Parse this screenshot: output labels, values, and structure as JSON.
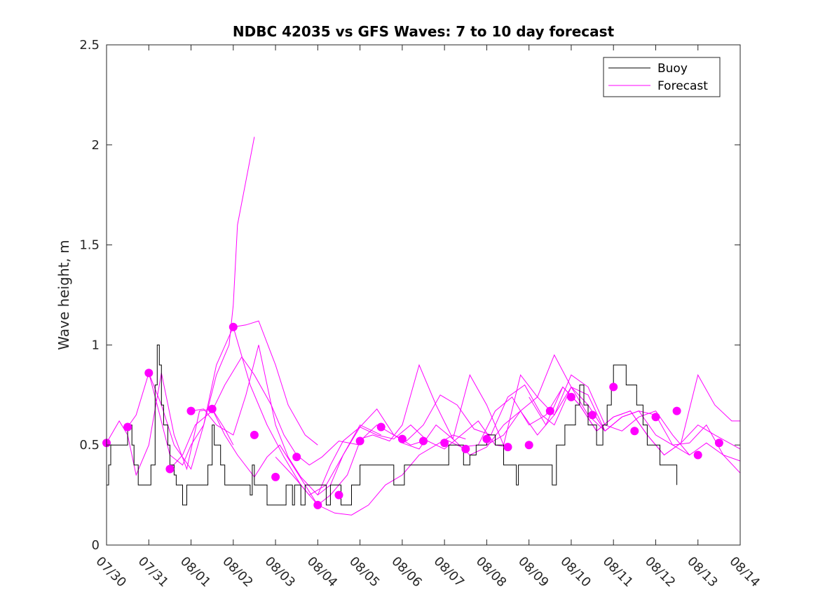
{
  "chart_data": {
    "type": "line",
    "title": "NDBC 42035 vs GFS Waves: 7 to 10 day forecast",
    "xlabel": "",
    "ylabel": "Wave height, m",
    "xlim": [
      "07/30",
      "08/14"
    ],
    "ylim": [
      0,
      2.5
    ],
    "x_tick_labels": [
      "07/30",
      "07/31",
      "08/01",
      "08/02",
      "08/03",
      "08/04",
      "08/05",
      "08/06",
      "08/07",
      "08/08",
      "08/09",
      "08/10",
      "08/11",
      "08/12",
      "08/13",
      "08/14"
    ],
    "y_tick_labels": [
      "0",
      "0.5",
      "1",
      "1.5",
      "2",
      "2.5"
    ],
    "y_ticks": [
      0,
      0.5,
      1,
      1.5,
      2,
      2.5
    ],
    "legend": {
      "position": "top-right",
      "entries": [
        "Buoy",
        "Forecast"
      ]
    },
    "colors": {
      "buoy": "#000000",
      "forecast": "#ff00ff"
    },
    "series": [
      {
        "name": "Buoy",
        "x": [
          0.0,
          0.05,
          0.1,
          0.15,
          0.25,
          0.5,
          0.6,
          0.65,
          0.75,
          1.0,
          1.05,
          1.15,
          1.2,
          1.25,
          1.3,
          1.35,
          1.4,
          1.45,
          1.5,
          1.55,
          1.6,
          1.65,
          1.75,
          1.8,
          1.9,
          1.95,
          2.0,
          2.05,
          2.25,
          2.3,
          2.4,
          2.5,
          2.55,
          2.6,
          2.65,
          2.7,
          2.8,
          2.9,
          3.2,
          3.3,
          3.4,
          3.45,
          3.5,
          3.6,
          3.8,
          3.95,
          4.1,
          4.25,
          4.3,
          4.4,
          4.45,
          4.55,
          4.6,
          4.7,
          5.15,
          5.2,
          5.3,
          5.45,
          5.55,
          5.65,
          5.8,
          6.0,
          6.1,
          6.2,
          6.4,
          6.8,
          7.05,
          7.3,
          7.5,
          7.75,
          8.0,
          8.1,
          8.3,
          8.45,
          8.6,
          8.75,
          9.0,
          9.2,
          9.4,
          9.6,
          9.65,
          9.7,
          9.75,
          9.85,
          10.0,
          10.2,
          10.35,
          10.5,
          10.55,
          10.65,
          10.75,
          10.85,
          11.0,
          11.1,
          11.2,
          11.3,
          11.4,
          11.5,
          11.6,
          11.75,
          11.85,
          11.95,
          12.0,
          12.3,
          12.55,
          12.7,
          12.8,
          12.9,
          13.0,
          13.1,
          13.15,
          13.3,
          13.5
        ],
        "values": [
          0.3,
          0.4,
          0.5,
          0.5,
          0.5,
          0.6,
          0.5,
          0.4,
          0.3,
          0.3,
          0.4,
          0.8,
          1.0,
          0.9,
          0.7,
          0.6,
          0.6,
          0.5,
          0.4,
          0.4,
          0.35,
          0.3,
          0.3,
          0.2,
          0.3,
          0.3,
          0.3,
          0.3,
          0.3,
          0.3,
          0.4,
          0.6,
          0.5,
          0.5,
          0.5,
          0.4,
          0.3,
          0.3,
          0.3,
          0.3,
          0.25,
          0.4,
          0.3,
          0.3,
          0.2,
          0.2,
          0.2,
          0.3,
          0.3,
          0.2,
          0.3,
          0.3,
          0.2,
          0.3,
          0.3,
          0.2,
          0.3,
          0.3,
          0.2,
          0.2,
          0.3,
          0.4,
          0.4,
          0.4,
          0.4,
          0.3,
          0.4,
          0.4,
          0.4,
          0.4,
          0.4,
          0.5,
          0.5,
          0.4,
          0.45,
          0.5,
          0.55,
          0.5,
          0.4,
          0.4,
          0.4,
          0.3,
          0.4,
          0.4,
          0.4,
          0.4,
          0.4,
          0.4,
          0.3,
          0.5,
          0.5,
          0.6,
          0.6,
          0.7,
          0.8,
          0.7,
          0.6,
          0.6,
          0.5,
          0.6,
          0.7,
          0.8,
          0.9,
          0.8,
          0.7,
          0.6,
          0.5,
          0.5,
          0.5,
          0.4,
          0.4,
          0.4,
          0.3
        ]
      },
      {
        "name": "Forecast",
        "runs": [
          {
            "x": [
              0.0,
              0.3,
              0.5,
              0.7,
              1.0,
              1.3,
              1.6,
              1.9,
              2.2,
              2.5,
              2.8,
              3.0
            ],
            "values": [
              0.51,
              0.62,
              0.55,
              0.35,
              0.5,
              0.86,
              0.55,
              0.38,
              0.67,
              0.68,
              0.58,
              0.5
            ]
          },
          {
            "x": [
              0.5,
              0.7,
              1.0,
              1.2,
              1.5,
              1.8,
              2.0,
              2.3,
              2.6,
              2.9,
              3.0,
              3.1,
              3.5
            ],
            "values": [
              0.59,
              0.65,
              0.86,
              0.7,
              0.45,
              0.4,
              0.5,
              0.6,
              0.85,
              1.0,
              1.2,
              1.6,
              2.04
            ]
          },
          {
            "x": [
              1.0,
              1.3,
              1.6,
              2.0,
              2.3,
              2.6,
              3.0,
              3.3,
              3.6,
              4.0,
              4.3,
              4.7,
              5.0
            ],
            "values": [
              0.86,
              0.7,
              0.5,
              0.38,
              0.6,
              0.9,
              1.09,
              1.1,
              1.12,
              0.9,
              0.7,
              0.55,
              0.5
            ]
          },
          {
            "x": [
              1.5,
              1.8,
              2.1,
              2.5,
              2.8,
              3.2,
              3.5,
              3.9,
              4.2,
              4.5,
              4.8,
              5.1,
              5.5,
              6.0
            ],
            "values": [
              0.38,
              0.45,
              0.6,
              0.67,
              0.8,
              0.94,
              0.85,
              0.7,
              0.55,
              0.45,
              0.4,
              0.44,
              0.52,
              0.5
            ]
          },
          {
            "x": [
              2.0,
              2.3,
              2.6,
              3.0,
              3.3,
              3.6,
              4.0,
              4.3,
              4.6,
              5.0,
              5.3,
              5.6,
              6.0,
              6.5
            ],
            "values": [
              0.67,
              0.68,
              0.6,
              0.55,
              0.75,
              1.0,
              0.6,
              0.44,
              0.34,
              0.25,
              0.3,
              0.45,
              0.6,
              0.55
            ]
          },
          {
            "x": [
              2.5,
              2.8,
              3.1,
              3.5,
              3.8,
              4.1,
              4.4,
              4.7,
              5.0,
              5.3,
              5.7,
              6.0,
              6.4,
              6.8,
              7.2,
              7.5
            ],
            "values": [
              0.68,
              0.55,
              0.45,
              0.34,
              0.44,
              0.5,
              0.4,
              0.3,
              0.2,
              0.25,
              0.35,
              0.52,
              0.6,
              0.55,
              0.5,
              0.52
            ]
          },
          {
            "x": [
              3.0,
              3.4,
              3.8,
              4.2,
              4.6,
              5.0,
              5.4,
              5.8,
              6.2,
              6.6,
              7.0,
              7.4,
              7.8,
              8.2,
              8.5
            ],
            "values": [
              1.09,
              0.8,
              0.6,
              0.44,
              0.3,
              0.2,
              0.16,
              0.15,
              0.2,
              0.3,
              0.35,
              0.45,
              0.5,
              0.55,
              0.53
            ]
          },
          {
            "x": [
              4.0,
              4.4,
              4.8,
              5.2,
              5.6,
              6.0,
              6.4,
              6.8,
              7.2,
              7.6,
              8.0,
              8.4,
              8.8,
              9.2,
              9.5
            ],
            "values": [
              0.44,
              0.35,
              0.25,
              0.3,
              0.45,
              0.59,
              0.55,
              0.53,
              0.6,
              0.52,
              0.48,
              0.55,
              0.62,
              0.5,
              0.49
            ]
          },
          {
            "x": [
              5.0,
              5.3,
              5.6,
              6.0,
              6.4,
              6.8,
              7.1,
              7.5,
              7.9,
              8.3,
              8.7,
              9.1,
              9.5,
              9.9,
              10.3,
              10.6,
              11.0
            ],
            "values": [
              0.25,
              0.4,
              0.52,
              0.59,
              0.68,
              0.55,
              0.52,
              0.6,
              0.75,
              0.7,
              0.58,
              0.55,
              0.74,
              0.8,
              0.65,
              0.6,
              0.79
            ]
          },
          {
            "x": [
              6.0,
              6.3,
              6.7,
              7.0,
              7.4,
              7.8,
              8.2,
              8.6,
              9.0,
              9.4,
              9.8,
              10.2,
              10.6,
              11.0,
              11.4,
              11.8,
              12.2
            ],
            "values": [
              0.53,
              0.55,
              0.52,
              0.6,
              0.9,
              0.7,
              0.53,
              0.85,
              0.7,
              0.5,
              0.85,
              0.74,
              0.95,
              0.79,
              0.65,
              0.57,
              0.64
            ]
          },
          {
            "x": [
              7.0,
              7.4,
              7.8,
              8.2,
              8.6,
              9.0,
              9.4,
              9.8,
              10.2,
              10.6,
              11.0,
              11.4,
              11.8,
              12.2,
              12.6,
              13.0,
              13.4,
              13.8
            ],
            "values": [
              0.51,
              0.48,
              0.6,
              0.53,
              0.45,
              0.49,
              0.6,
              0.67,
              0.55,
              0.65,
              0.85,
              0.79,
              0.6,
              0.57,
              0.64,
              0.67,
              0.55,
              0.45
            ]
          },
          {
            "x": [
              8.0,
              8.4,
              8.8,
              9.2,
              9.6,
              10.0,
              10.4,
              10.8,
              11.2,
              11.6,
              12.0,
              12.4,
              12.8,
              13.2,
              13.6,
              14.0,
              14.4,
              15.0
            ],
            "values": [
              0.53,
              0.49,
              0.5,
              0.67,
              0.74,
              0.6,
              0.65,
              0.79,
              0.7,
              0.57,
              0.64,
              0.67,
              0.55,
              0.45,
              0.51,
              0.6,
              0.55,
              0.48
            ]
          },
          {
            "x": [
              9.0,
              9.4,
              9.8,
              10.2,
              10.6,
              11.0,
              11.4,
              11.8,
              12.2,
              12.6,
              13.0,
              13.4,
              13.8,
              14.2,
              14.6,
              15.0
            ],
            "values": [
              0.5,
              0.55,
              0.67,
              0.74,
              0.65,
              0.79,
              0.7,
              0.57,
              0.64,
              0.67,
              0.65,
              0.5,
              0.45,
              0.51,
              0.45,
              0.36
            ]
          },
          {
            "x": [
              10.0,
              10.4,
              10.8,
              11.2,
              11.6,
              12.0,
              12.4,
              12.8,
              13.2,
              13.6,
              14.0,
              14.4,
              14.8,
              15.0
            ],
            "values": [
              0.74,
              0.6,
              0.79,
              0.7,
              0.57,
              0.64,
              0.67,
              0.55,
              0.45,
              0.51,
              0.85,
              0.7,
              0.62,
              0.62
            ]
          },
          {
            "x": [
              11.0,
              11.4,
              11.8,
              12.2,
              12.6,
              13.0,
              13.4,
              13.8,
              14.2,
              14.6,
              15.0
            ],
            "values": [
              0.79,
              0.75,
              0.57,
              0.64,
              0.67,
              0.55,
              0.5,
              0.51,
              0.6,
              0.45,
              0.42
            ]
          }
        ],
        "markers": {
          "x": [
            0.0,
            0.5,
            1.0,
            1.5,
            2.0,
            2.5,
            3.0,
            3.5,
            4.0,
            4.5,
            5.0,
            5.5,
            6.0,
            6.5,
            7.0,
            7.5,
            8.0,
            8.5,
            9.0,
            9.5,
            10.0,
            10.5,
            11.0,
            11.5,
            12.0,
            12.5,
            13.0,
            13.5,
            14.0,
            14.5
          ],
          "values": [
            0.51,
            0.59,
            0.86,
            0.38,
            0.67,
            0.68,
            1.09,
            0.55,
            0.34,
            0.44,
            0.2,
            0.25,
            0.52,
            0.59,
            0.53,
            0.52,
            0.51,
            0.48,
            0.53,
            0.49,
            0.5,
            0.67,
            0.74,
            0.65,
            0.79,
            0.57,
            0.64,
            0.67,
            0.45,
            0.51
          ]
        }
      }
    ]
  }
}
